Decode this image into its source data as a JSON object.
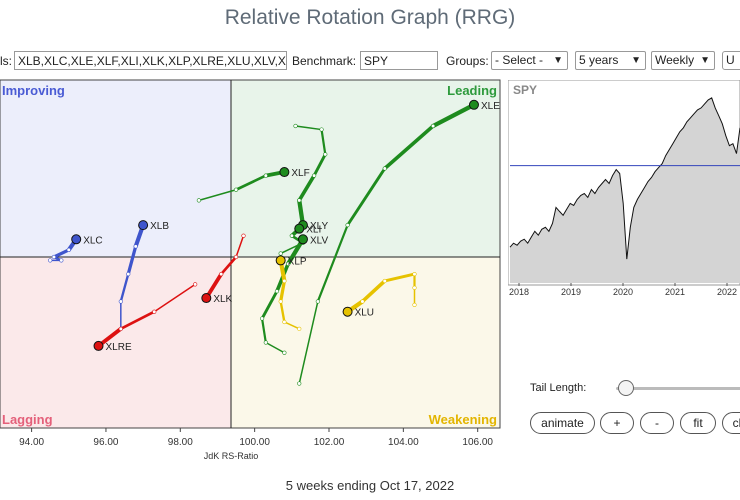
{
  "title": "Relative Rotation Graph (RRG)",
  "controls": {
    "symbols_label": "ls:",
    "symbols_value": "XLB,XLC,XLE,XLF,XLI,XLK,XLP,XLRE,XLU,XLV,XL",
    "benchmark_label": "Benchmark:",
    "benchmark_value": "SPY",
    "groups_label": "Groups:",
    "groups_value": "- Select -",
    "period_value": "5 years",
    "frequency_value": "Weekly",
    "update_button": "U"
  },
  "quadrants": {
    "improving": "Improving",
    "leading": "Leading",
    "lagging": "Lagging",
    "weakening": "Weakening",
    "colors": {
      "improving": "#eceefb",
      "leading": "#e8f4ea",
      "lagging": "#fbe9ea",
      "weakening": "#fbf8e9"
    }
  },
  "x_axis": {
    "label": "JdK RS-Ratio",
    "ticks": [
      "94.00",
      "96.00",
      "98.00",
      "100.00",
      "102.00",
      "104.00",
      "106.00"
    ]
  },
  "tails": [
    {
      "name": "XLE",
      "color": "#1e8b1e",
      "points": [
        [
          101.2,
          97.3
        ],
        [
          101.7,
          99.7
        ],
        [
          102.5,
          101.9
        ],
        [
          103.5,
          103.5
        ],
        [
          104.8,
          104.7
        ],
        [
          105.9,
          105.3
        ]
      ]
    },
    {
      "name": "XLF",
      "color": "#1e8b1e",
      "points": [
        [
          98.5,
          102.6
        ],
        [
          99.5,
          102.9
        ],
        [
          100.3,
          103.3
        ],
        [
          100.8,
          103.4
        ]
      ]
    },
    {
      "name": "XLY",
      "color": "#1e8b1e",
      "points": [
        [
          101.1,
          104.7
        ],
        [
          101.8,
          104.6
        ],
        [
          101.9,
          103.9
        ],
        [
          101.6,
          103.3
        ],
        [
          101.2,
          102.6
        ],
        [
          101.3,
          101.9
        ]
      ]
    },
    {
      "name": "XLI",
      "color": "#1e8b1e",
      "points": [
        [
          100.7,
          101.1
        ],
        [
          101.3,
          101.4
        ],
        [
          101.0,
          101.6
        ],
        [
          101.2,
          101.8
        ]
      ]
    },
    {
      "name": "XLV",
      "color": "#1e8b1e",
      "points": [
        [
          100.8,
          98.2
        ],
        [
          100.3,
          98.5
        ],
        [
          100.2,
          99.2
        ],
        [
          100.6,
          100.0
        ],
        [
          100.9,
          100.8
        ],
        [
          101.3,
          101.5
        ]
      ]
    },
    {
      "name": "XLP",
      "color": "#e6c200",
      "points": [
        [
          101.2,
          98.9
        ],
        [
          100.8,
          99.1
        ],
        [
          100.7,
          99.7
        ],
        [
          100.8,
          100.3
        ],
        [
          100.7,
          100.9
        ]
      ]
    },
    {
      "name": "XLU",
      "color": "#e6c200",
      "points": [
        [
          104.3,
          99.6
        ],
        [
          104.3,
          100.1
        ],
        [
          104.3,
          100.5
        ],
        [
          103.5,
          100.3
        ],
        [
          102.9,
          99.7
        ],
        [
          102.5,
          99.4
        ]
      ]
    },
    {
      "name": "XLB",
      "color": "#3f55cc",
      "points": [
        [
          96.4,
          98.9
        ],
        [
          96.4,
          99.7
        ],
        [
          96.6,
          100.5
        ],
        [
          96.8,
          101.3
        ],
        [
          97.0,
          101.9
        ]
      ]
    },
    {
      "name": "XLC",
      "color": "#3f55cc",
      "points": [
        [
          94.5,
          100.9
        ],
        [
          94.8,
          100.9
        ],
        [
          94.6,
          101.0
        ],
        [
          95.0,
          101.2
        ],
        [
          95.2,
          101.5
        ]
      ]
    },
    {
      "name": "XLK",
      "color": "#dd1111",
      "points": [
        [
          99.7,
          101.6
        ],
        [
          99.5,
          101.0
        ],
        [
          99.1,
          100.5
        ],
        [
          98.7,
          99.8
        ]
      ]
    },
    {
      "name": "XLRE",
      "color": "#dd1111",
      "points": [
        [
          98.4,
          100.2
        ],
        [
          97.3,
          99.4
        ],
        [
          96.4,
          98.9
        ],
        [
          95.8,
          98.4
        ]
      ]
    }
  ],
  "benchmark_chart": {
    "symbol": "SPY",
    "years": [
      "2018",
      "2019",
      "2020",
      "2021",
      "2022"
    ],
    "reference_value": 0.41,
    "series": [
      0.82,
      0.8,
      0.81,
      0.79,
      0.78,
      0.8,
      0.77,
      0.74,
      0.76,
      0.73,
      0.72,
      0.74,
      0.7,
      0.62,
      0.64,
      0.66,
      0.63,
      0.6,
      0.61,
      0.58,
      0.56,
      0.55,
      0.57,
      0.53,
      0.55,
      0.52,
      0.5,
      0.48,
      0.5,
      0.46,
      0.43,
      0.45,
      0.6,
      0.88,
      0.72,
      0.62,
      0.58,
      0.55,
      0.52,
      0.49,
      0.47,
      0.44,
      0.42,
      0.4,
      0.36,
      0.33,
      0.3,
      0.27,
      0.24,
      0.22,
      0.19,
      0.17,
      0.15,
      0.13,
      0.12,
      0.1,
      0.08,
      0.07,
      0.12,
      0.16,
      0.2,
      0.26,
      0.31,
      0.3,
      0.35,
      0.22
    ]
  },
  "tail_length_label": "Tail Length:",
  "tail_length_value": 0.07,
  "buttons": {
    "animate": "animate",
    "plus": "+",
    "minus": "-",
    "fit": "fit",
    "clear": "cl"
  },
  "footer": "5 weeks ending Oct 17, 2022"
}
